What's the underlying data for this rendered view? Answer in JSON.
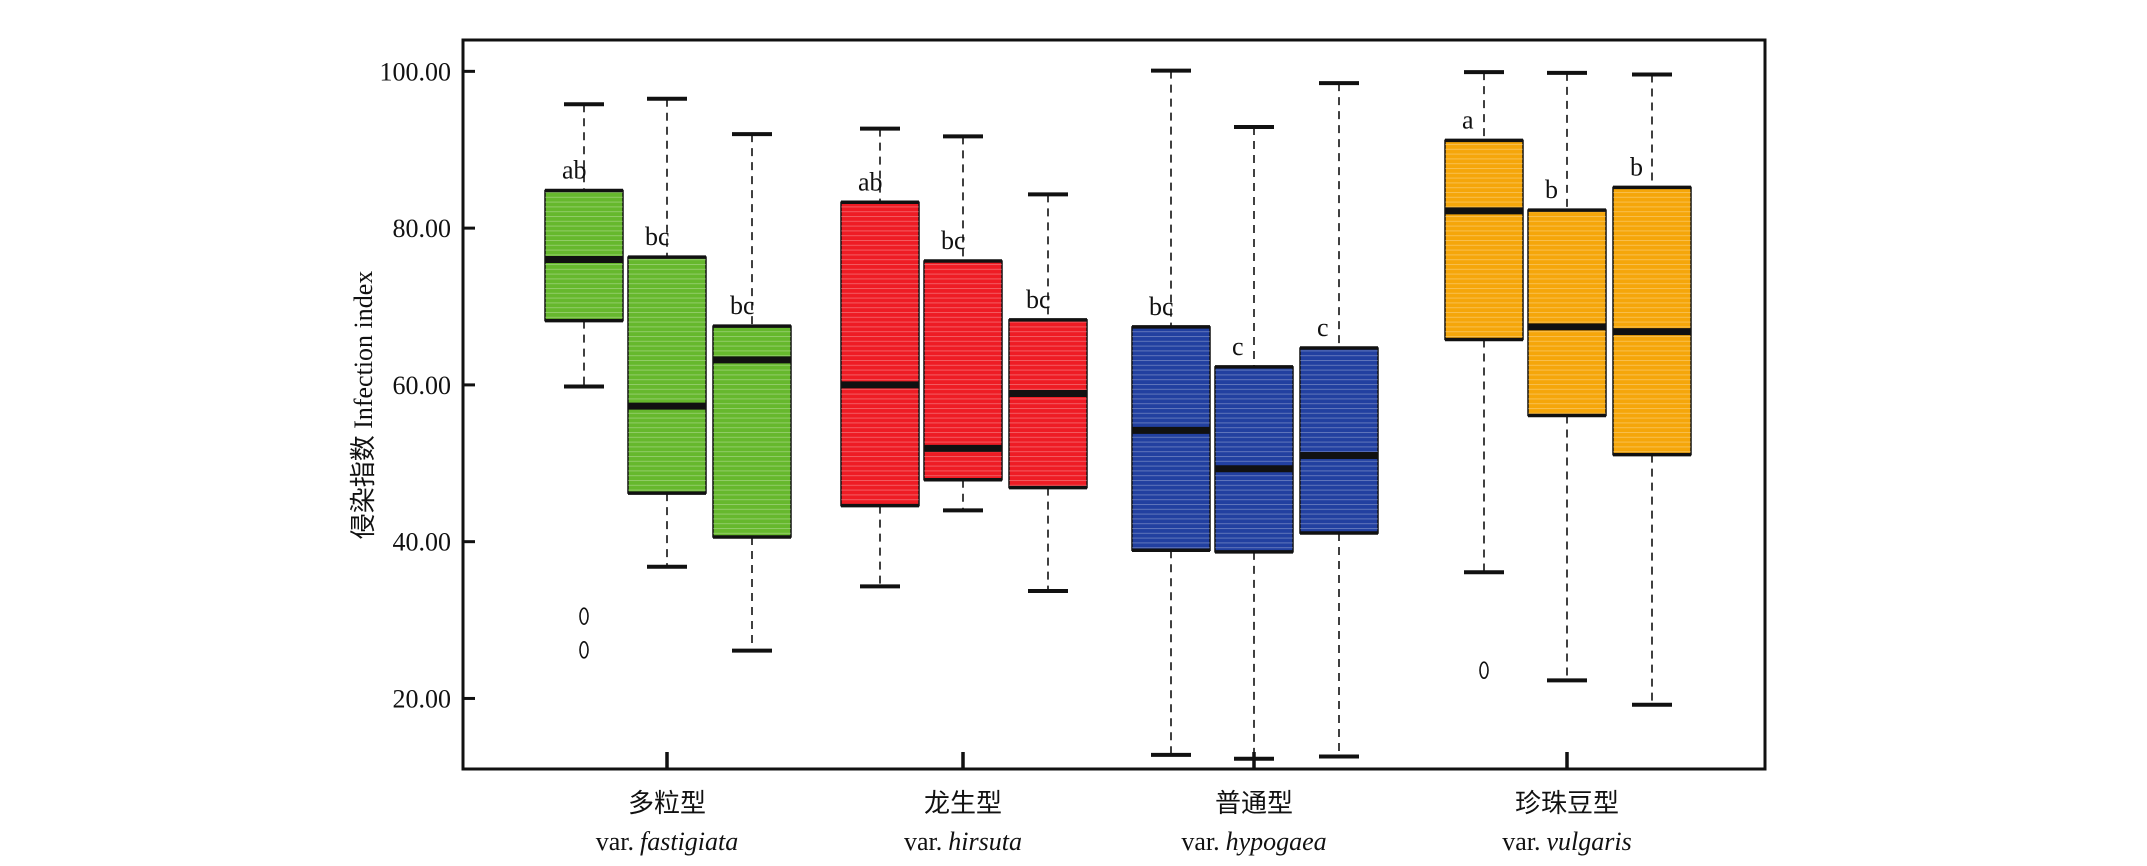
{
  "chart_data": {
    "type": "box",
    "ylabel": "侵染指数 Infection index",
    "ylim": [
      11,
      104
    ],
    "yticks": [
      "100.00",
      "80.00",
      "60.00",
      "40.00",
      "20.00"
    ],
    "ytick_values": [
      100,
      80,
      60,
      40,
      20
    ],
    "grid": false,
    "legend": "none",
    "groups": [
      {
        "name_cn": "多粒型",
        "var_prefix": "var.",
        "var_name": "fastigiata",
        "color": "#66b82d",
        "boxes": [
          {
            "min": 59.8,
            "q1": 68.2,
            "median": 76.0,
            "q3": 84.8,
            "max": 95.8,
            "label": "ab",
            "outliers": [
              30.5,
              26.2
            ]
          },
          {
            "min": 36.8,
            "q1": 46.2,
            "median": 57.3,
            "q3": 76.3,
            "max": 96.5,
            "label": "bc",
            "outliers": []
          },
          {
            "min": 26.1,
            "q1": 40.6,
            "median": 63.2,
            "q3": 67.5,
            "max": 92.0,
            "label": "bc",
            "outliers": []
          }
        ]
      },
      {
        "name_cn": "龙生型",
        "var_prefix": "var.",
        "var_name": "hirsuta",
        "color": "#ee1c24",
        "boxes": [
          {
            "min": 34.3,
            "q1": 44.6,
            "median": 60.0,
            "q3": 83.3,
            "max": 92.7,
            "label": "ab",
            "outliers": []
          },
          {
            "min": 44.0,
            "q1": 47.9,
            "median": 51.9,
            "q3": 75.8,
            "max": 91.7,
            "label": "bc",
            "outliers": []
          },
          {
            "min": 33.7,
            "q1": 46.9,
            "median": 58.9,
            "q3": 68.3,
            "max": 84.3,
            "label": "bc",
            "outliers": []
          }
        ]
      },
      {
        "name_cn": "普通型",
        "var_prefix": "var.",
        "var_name": "hypogaea",
        "color": "#2240a0",
        "boxes": [
          {
            "min": 12.8,
            "q1": 38.9,
            "median": 54.2,
            "q3": 67.4,
            "max": 100.1,
            "label": "bc",
            "outliers": []
          },
          {
            "min": 12.3,
            "q1": 38.7,
            "median": 49.3,
            "q3": 62.3,
            "max": 92.9,
            "label": "c",
            "outliers": []
          },
          {
            "min": 12.6,
            "q1": 41.1,
            "median": 51.0,
            "q3": 64.7,
            "max": 98.5,
            "label": "c",
            "outliers": []
          }
        ]
      },
      {
        "name_cn": "珍珠豆型",
        "var_prefix": "var.",
        "var_name": "vulgaris",
        "color": "#f5a60a",
        "boxes": [
          {
            "min": 36.1,
            "q1": 65.8,
            "median": 82.2,
            "q3": 91.2,
            "max": 99.9,
            "label": "a",
            "outliers": [
              23.6
            ]
          },
          {
            "min": 22.3,
            "q1": 56.1,
            "median": 67.4,
            "q3": 82.3,
            "max": 99.8,
            "label": "b",
            "outliers": []
          },
          {
            "min": 19.2,
            "q1": 51.1,
            "median": 66.8,
            "q3": 85.2,
            "max": 99.6,
            "label": "b",
            "outliers": []
          }
        ]
      }
    ]
  }
}
